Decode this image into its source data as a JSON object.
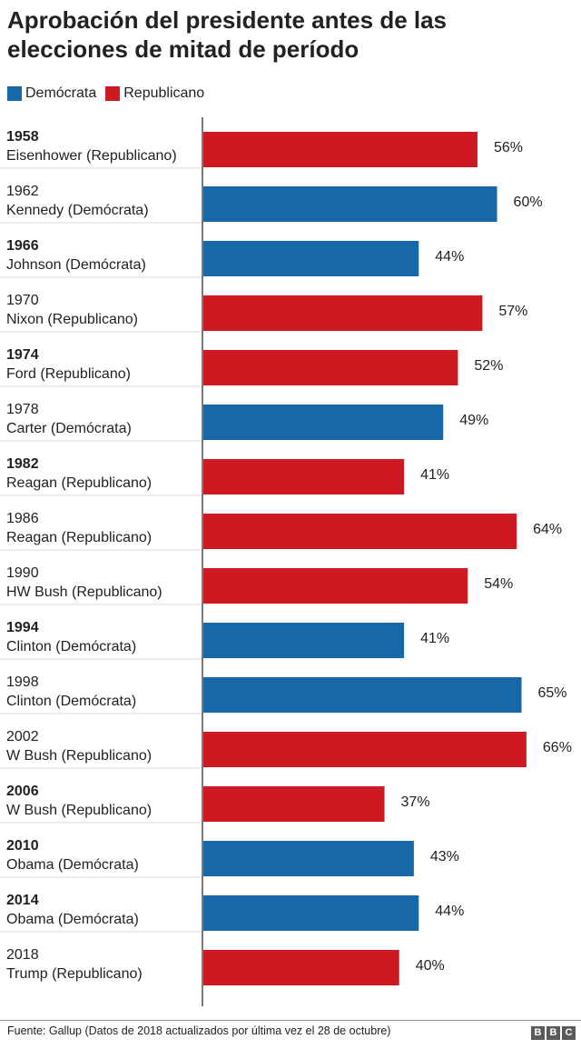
{
  "title": "Aprobación del presidente antes de las elecciones de mitad de período",
  "legend": [
    {
      "label": "Demócrata",
      "color": "#1768a9"
    },
    {
      "label": "Republicano",
      "color": "#cd1a22"
    }
  ],
  "chart_data": {
    "type": "bar",
    "orientation": "horizontal",
    "legend_position": "top-left",
    "xlim": [
      0,
      70
    ],
    "value_suffix": "%",
    "rows": [
      {
        "year": "1958",
        "president": "Eisenhower (Republicano)",
        "party": "Republicano",
        "value": 56,
        "label": "56%",
        "bold_year": true
      },
      {
        "year": "1962",
        "president": "Kennedy (Demócrata)",
        "party": "Demócrata",
        "value": 60,
        "label": "60%",
        "bold_year": false
      },
      {
        "year": "1966",
        "president": "Johnson (Demócrata)",
        "party": "Demócrata",
        "value": 44,
        "label": "44%",
        "bold_year": true
      },
      {
        "year": "1970",
        "president": "Nixon (Republicano)",
        "party": "Republicano",
        "value": 57,
        "label": "57%",
        "bold_year": false
      },
      {
        "year": "1974",
        "president": "Ford (Republicano)",
        "party": "Republicano",
        "value": 52,
        "label": "52%",
        "bold_year": true
      },
      {
        "year": "1978",
        "president": "Carter (Demócrata)",
        "party": "Demócrata",
        "value": 49,
        "label": "49%",
        "bold_year": false
      },
      {
        "year": "1982",
        "president": "Reagan (Republicano)",
        "party": "Republicano",
        "value": 41,
        "label": "41%",
        "bold_year": true
      },
      {
        "year": "1986",
        "president": "Reagan (Republicano)",
        "party": "Republicano",
        "value": 64,
        "label": "64%",
        "bold_year": false
      },
      {
        "year": "1990",
        "president": "HW Bush (Republicano)",
        "party": "Republicano",
        "value": 54,
        "label": "54%",
        "bold_year": false
      },
      {
        "year": "1994",
        "president": "Clinton (Demócrata)",
        "party": "Demócrata",
        "value": 41,
        "label": "41%",
        "bold_year": true
      },
      {
        "year": "1998",
        "president": "Clinton (Demócrata)",
        "party": "Demócrata",
        "value": 65,
        "label": "65%",
        "bold_year": false
      },
      {
        "year": "2002",
        "president": "W Bush (Republicano)",
        "party": "Republicano",
        "value": 66,
        "label": "66%",
        "bold_year": false
      },
      {
        "year": "2006",
        "president": "W Bush (Republicano)",
        "party": "Republicano",
        "value": 37,
        "label": "37%",
        "bold_year": true
      },
      {
        "year": "2010",
        "president": "Obama (Demócrata)",
        "party": "Demócrata",
        "value": 43,
        "label": "43%",
        "bold_year": true
      },
      {
        "year": "2014",
        "president": "Obama (Demócrata)",
        "party": "Demócrata",
        "value": 44,
        "label": "44%",
        "bold_year": true
      },
      {
        "year": "2018",
        "president": "Trump (Republicano)",
        "party": "Republicano",
        "value": 40,
        "label": "40%",
        "bold_year": false
      }
    ]
  },
  "footer": {
    "source": "Fuente: Gallup (Datos de 2018 actualizados por última vez el  28 de octubre)",
    "logo_letters": [
      "B",
      "B",
      "C"
    ]
  }
}
